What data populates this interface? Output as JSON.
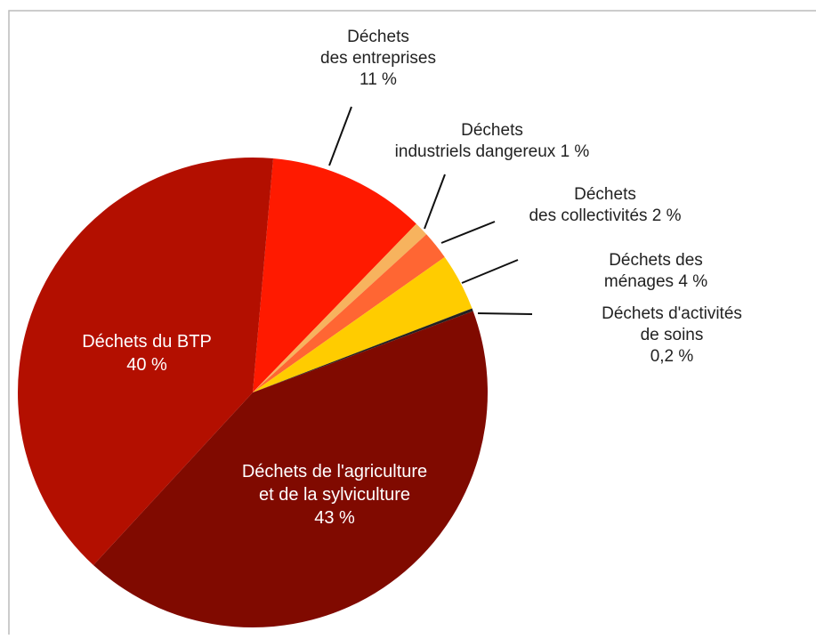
{
  "chart_data": {
    "type": "pie",
    "categories": [
      "Déchets\ndes entreprises",
      "Déchets\nindustriels dangereux",
      "Déchets\ndes collectivités",
      "Déchets des ménages",
      "Déchets d'activités de soins",
      "Déchets de l'agriculture\net de la sylviculture",
      "Déchets du BTP"
    ],
    "values": [
      11,
      1,
      2,
      4,
      0.2,
      43,
      40
    ],
    "value_labels": [
      "11 %",
      "1 %",
      "2 %",
      "4 %",
      "0,2 %",
      "43 %",
      "40 %"
    ],
    "colors": [
      "#ff1a00",
      "#f7b35e",
      "#ff6633",
      "#ffcc00",
      "#222222",
      "#800a00",
      "#b30f00"
    ]
  }
}
